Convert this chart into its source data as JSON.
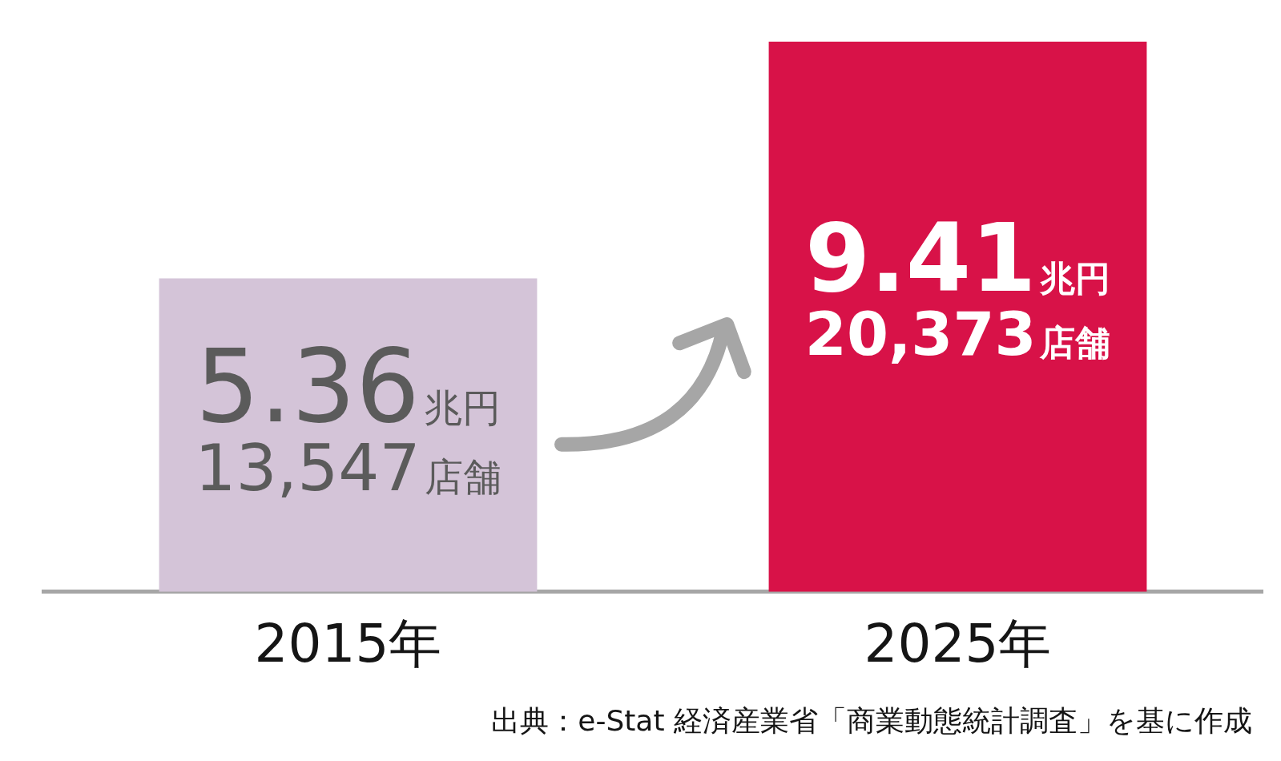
{
  "chart_data": {
    "type": "bar",
    "categories": [
      "2015年",
      "2025年"
    ],
    "values": [
      5.36,
      9.41
    ],
    "colors": [
      "#d4c4d8",
      "#d81248"
    ],
    "value_labels": [
      "5.36兆円\n13,547店舗",
      "9.41兆円\n20,373店舗"
    ],
    "tick_labels": "x",
    "annotations": [
      "出典：e-Stat 経済産業省「商業動態統計調査」を基に作成"
    ]
  }
}
